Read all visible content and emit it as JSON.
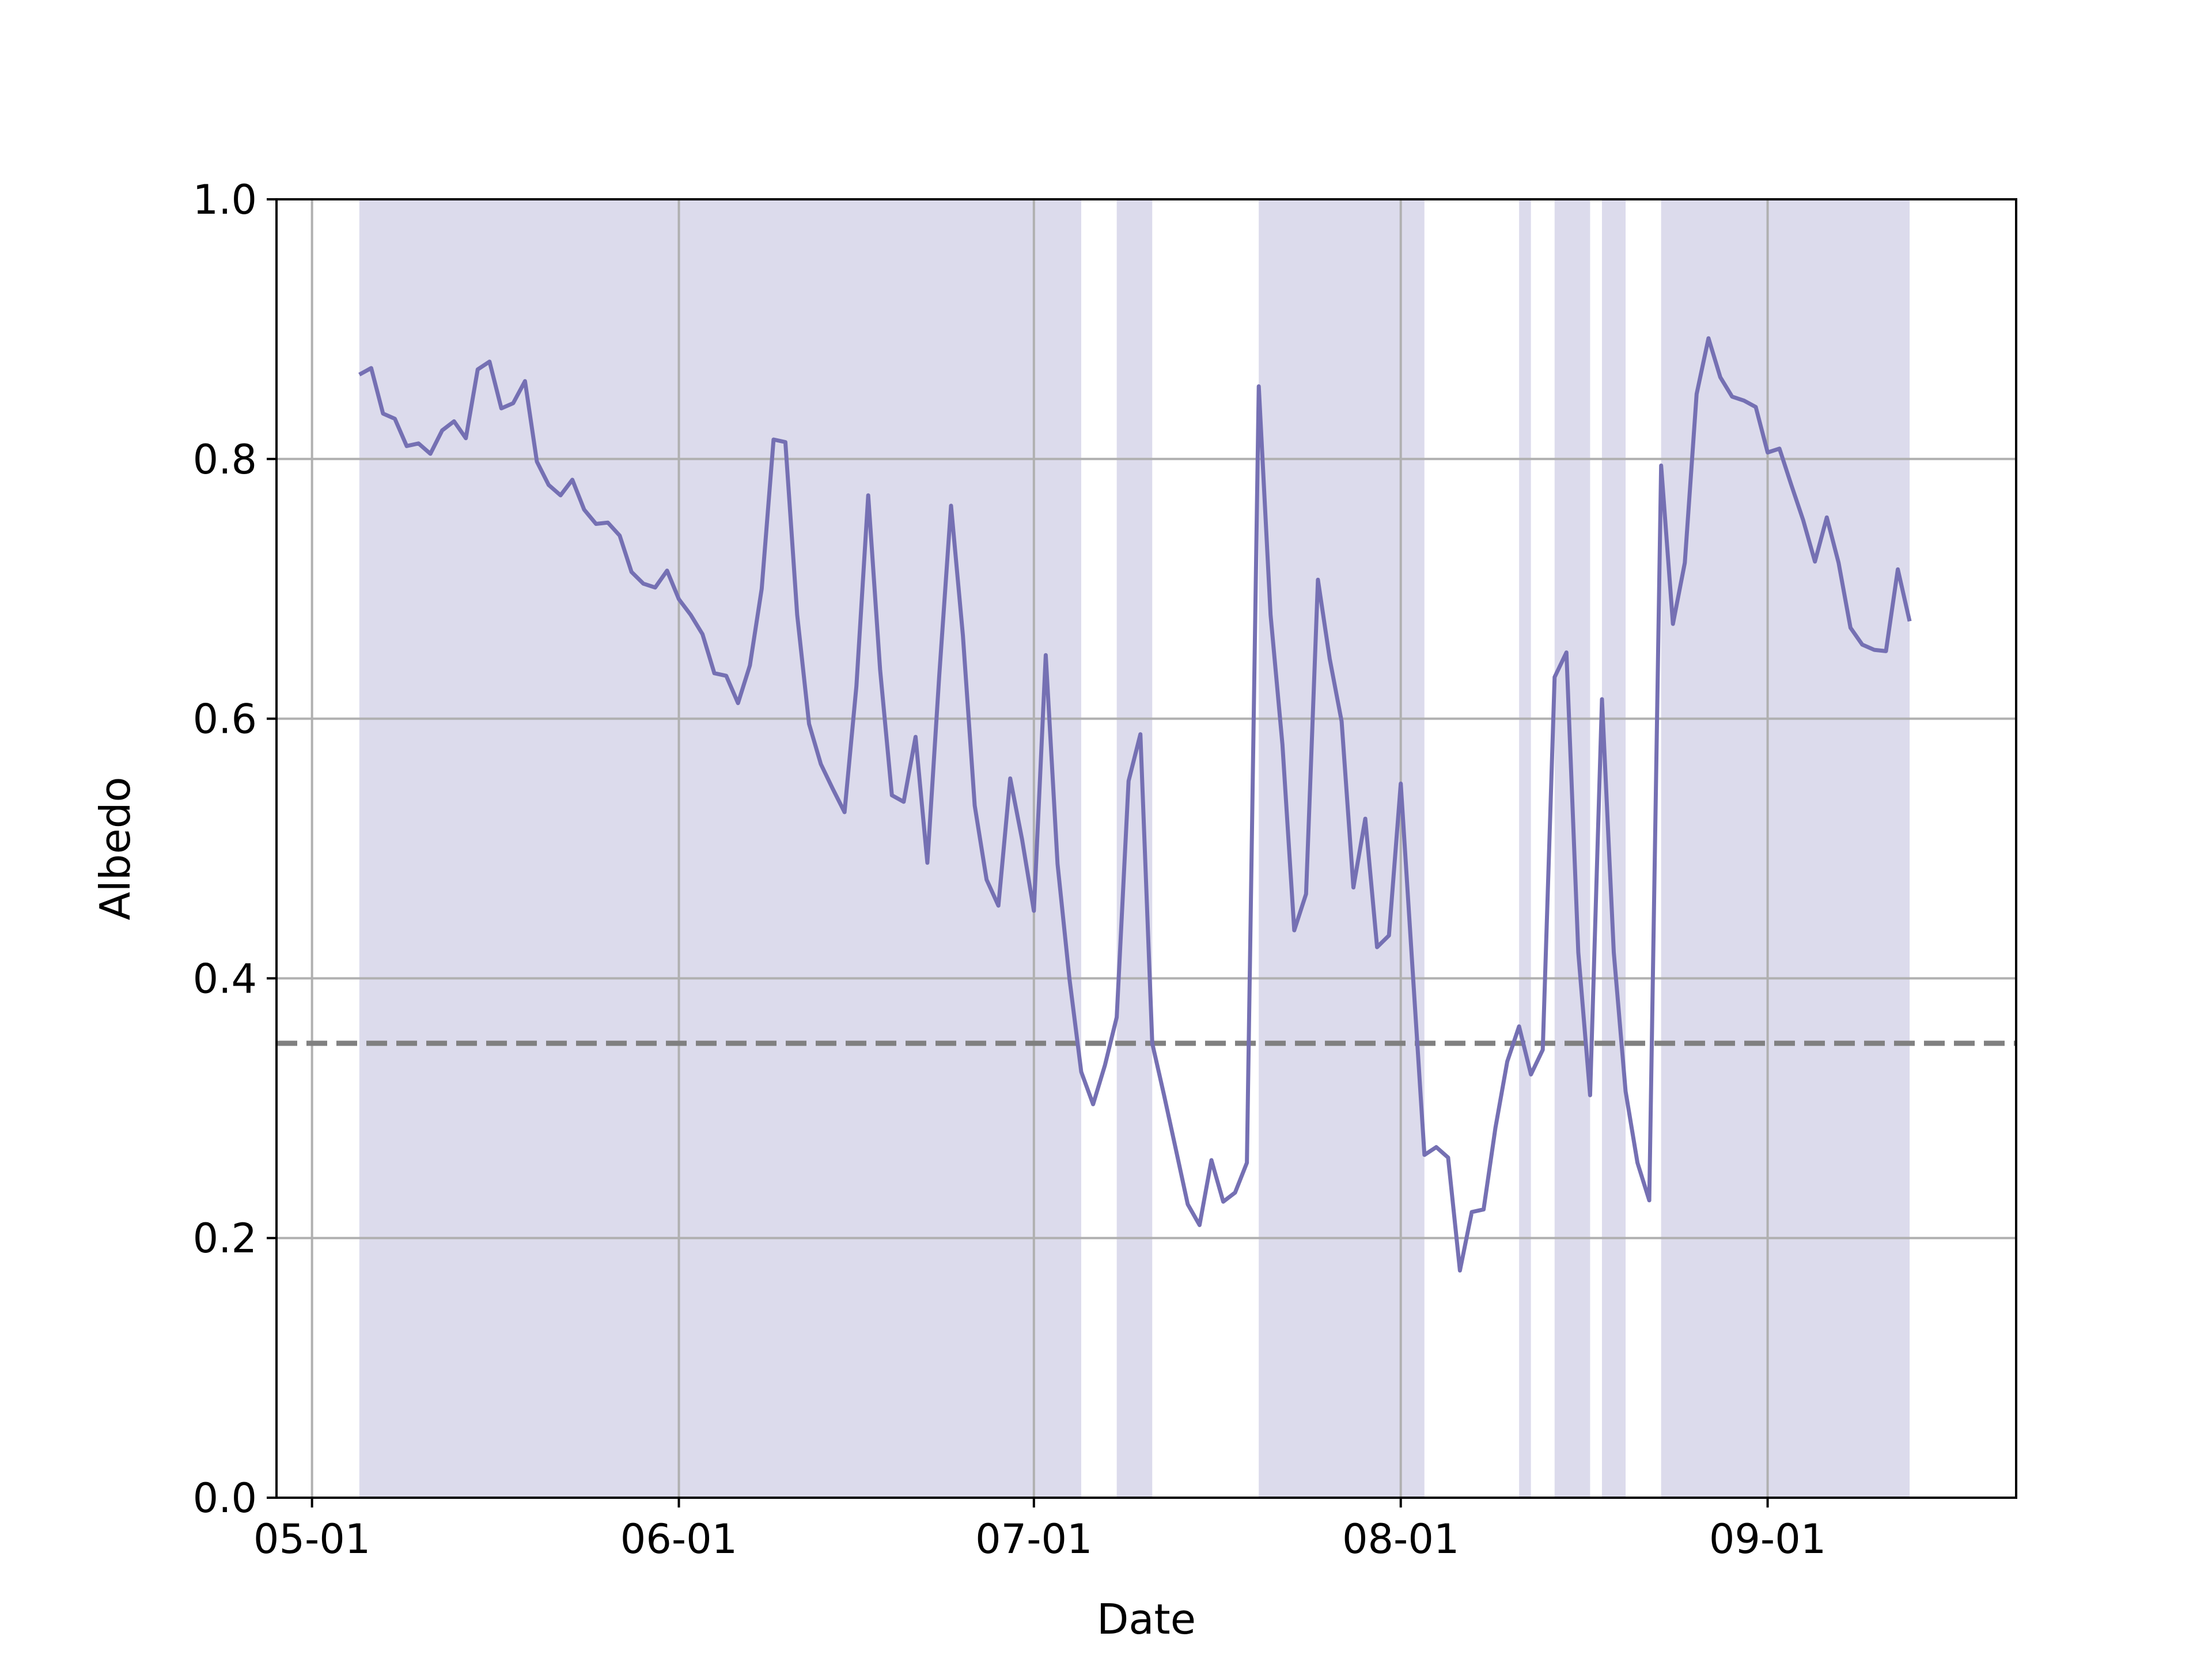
{
  "chart_data": {
    "type": "line",
    "title": "",
    "xlabel": "Date",
    "ylabel": "Albedo",
    "x_axis": {
      "kind": "date",
      "range": [
        "2024-04-28",
        "2024-09-22"
      ],
      "ticks": [
        {
          "date": "2024-05-01",
          "label": "05-01"
        },
        {
          "date": "2024-06-01",
          "label": "06-01"
        },
        {
          "date": "2024-07-01",
          "label": "07-01"
        },
        {
          "date": "2024-08-01",
          "label": "08-01"
        },
        {
          "date": "2024-09-01",
          "label": "09-01"
        }
      ]
    },
    "ylim": [
      0.0,
      1.0
    ],
    "y_ticks": [
      "0.0",
      "0.2",
      "0.4",
      "0.6",
      "0.8",
      "1.0"
    ],
    "grid": true,
    "reference_line": {
      "y": 0.35,
      "style": "dashed",
      "color": "#808080"
    },
    "line_color": "#7570b3",
    "shade_color": "#dcdbec",
    "shaded_periods": [
      [
        "2024-05-05",
        "2024-07-05"
      ],
      [
        "2024-07-08",
        "2024-07-11"
      ],
      [
        "2024-07-20",
        "2024-08-03"
      ],
      [
        "2024-08-11",
        "2024-08-12"
      ],
      [
        "2024-08-14",
        "2024-08-17"
      ],
      [
        "2024-08-18",
        "2024-08-20"
      ],
      [
        "2024-08-23",
        "2024-09-13"
      ]
    ],
    "series": [
      {
        "x": [
          "2024-05-05",
          "2024-05-06",
          "2024-05-07",
          "2024-05-08",
          "2024-05-09",
          "2024-05-10",
          "2024-05-11",
          "2024-05-12",
          "2024-05-13",
          "2024-05-14",
          "2024-05-15",
          "2024-05-16",
          "2024-05-17",
          "2024-05-18",
          "2024-05-19",
          "2024-05-20",
          "2024-05-21",
          "2024-05-22",
          "2024-05-23",
          "2024-05-24",
          "2024-05-25",
          "2024-05-26",
          "2024-05-27",
          "2024-05-28",
          "2024-05-29",
          "2024-05-30",
          "2024-05-31",
          "2024-06-01",
          "2024-06-02",
          "2024-06-03",
          "2024-06-04",
          "2024-06-05",
          "2024-06-06",
          "2024-06-07",
          "2024-06-08",
          "2024-06-09",
          "2024-06-10",
          "2024-06-11",
          "2024-06-12",
          "2024-06-13",
          "2024-06-14",
          "2024-06-15",
          "2024-06-16",
          "2024-06-17",
          "2024-06-18",
          "2024-06-19",
          "2024-06-20",
          "2024-06-21",
          "2024-06-22",
          "2024-06-23",
          "2024-06-24",
          "2024-06-25",
          "2024-06-26",
          "2024-06-27",
          "2024-06-28",
          "2024-06-29",
          "2024-06-30",
          "2024-07-01",
          "2024-07-02",
          "2024-07-03",
          "2024-07-04",
          "2024-07-05",
          "2024-07-06",
          "2024-07-07",
          "2024-07-08",
          "2024-07-09",
          "2024-07-10",
          "2024-07-11",
          "2024-07-12",
          "2024-07-13",
          "2024-07-14",
          "2024-07-15",
          "2024-07-16",
          "2024-07-17",
          "2024-07-18",
          "2024-07-19",
          "2024-07-20",
          "2024-07-21",
          "2024-07-22",
          "2024-07-23",
          "2024-07-24",
          "2024-07-25",
          "2024-07-26",
          "2024-07-27",
          "2024-07-28",
          "2024-07-29",
          "2024-07-30",
          "2024-07-31",
          "2024-08-01",
          "2024-08-02",
          "2024-08-03",
          "2024-08-04",
          "2024-08-05",
          "2024-08-06",
          "2024-08-07",
          "2024-08-08",
          "2024-08-09",
          "2024-08-10",
          "2024-08-11",
          "2024-08-12",
          "2024-08-13",
          "2024-08-14",
          "2024-08-15",
          "2024-08-16",
          "2024-08-17",
          "2024-08-18",
          "2024-08-19",
          "2024-08-20",
          "2024-08-21",
          "2024-08-22",
          "2024-08-23",
          "2024-08-24",
          "2024-08-25",
          "2024-08-26",
          "2024-08-27",
          "2024-08-28",
          "2024-08-29",
          "2024-08-30",
          "2024-08-31",
          "2024-09-01",
          "2024-09-02",
          "2024-09-03",
          "2024-09-04",
          "2024-09-05",
          "2024-09-06",
          "2024-09-07",
          "2024-09-08",
          "2024-09-09",
          "2024-09-10",
          "2024-09-11",
          "2024-09-12",
          "2024-09-13"
        ],
        "y": [
          0.865,
          0.87,
          0.835,
          0.831,
          0.81,
          0.812,
          0.804,
          0.822,
          0.829,
          0.816,
          0.869,
          0.875,
          0.839,
          0.843,
          0.86,
          0.798,
          0.78,
          0.772,
          0.784,
          0.761,
          0.75,
          0.751,
          0.741,
          0.713,
          0.704,
          0.701,
          0.714,
          0.692,
          0.68,
          0.665,
          0.635,
          0.633,
          0.612,
          0.641,
          0.7,
          0.815,
          0.813,
          0.68,
          0.596,
          0.565,
          0.546,
          0.528,
          0.625,
          0.772,
          0.638,
          0.541,
          0.536,
          0.586,
          0.489,
          0.633,
          0.764,
          0.664,
          0.533,
          0.476,
          0.456,
          0.554,
          0.507,
          0.452,
          0.649,
          0.488,
          0.4,
          0.328,
          0.303,
          0.333,
          0.37,
          0.552,
          0.588,
          0.35,
          0.31,
          0.268,
          0.226,
          0.21,
          0.26,
          0.228,
          0.235,
          0.258,
          0.856,
          0.68,
          0.58,
          0.437,
          0.465,
          0.707,
          0.646,
          0.598,
          0.47,
          0.523,
          0.424,
          0.433,
          0.55,
          0.407,
          0.264,
          0.27,
          0.262,
          0.175,
          0.22,
          0.222,
          0.285,
          0.336,
          0.363,
          0.326,
          0.345,
          0.632,
          0.651,
          0.42,
          0.31,
          0.615,
          0.42,
          0.313,
          0.258,
          0.229,
          0.795,
          0.673,
          0.72,
          0.85,
          0.893,
          0.863,
          0.848,
          0.845,
          0.84,
          0.805,
          0.808,
          0.78,
          0.753,
          0.721,
          0.755,
          0.72,
          0.67,
          0.657,
          0.653,
          0.652,
          0.715,
          0.675
        ]
      }
    ]
  }
}
